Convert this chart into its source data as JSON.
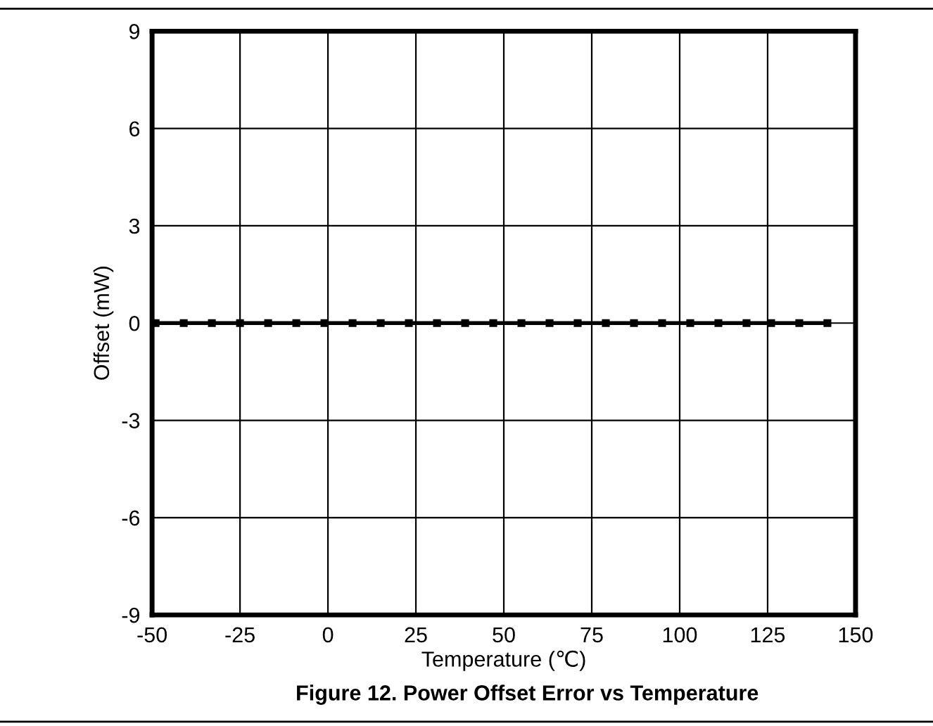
{
  "chart_data": {
    "type": "line",
    "title": "Figure 12. Power Offset Error vs Temperature",
    "xlabel": "Temperature (℃)",
    "ylabel": "Offset (mW)",
    "series": [
      {
        "color": "#000000",
        "x": [
          -49,
          -41,
          -33,
          -25,
          -17,
          -9,
          -1,
          7,
          15,
          23,
          31,
          39,
          47,
          55,
          63,
          71,
          79,
          87,
          95,
          103,
          111,
          119,
          126,
          134,
          142
        ],
        "values": [
          0,
          0,
          0,
          0,
          0,
          0,
          0,
          0,
          0,
          0,
          0,
          0,
          0,
          0,
          0,
          0,
          0,
          0,
          0,
          0,
          0,
          0,
          0,
          0,
          0
        ]
      }
    ],
    "xlim": [
      -50,
      150
    ],
    "xticks": [
      -50,
      -25,
      0,
      25,
      50,
      75,
      100,
      125,
      150
    ],
    "ylim": [
      -9,
      9
    ],
    "yticks": [
      -9,
      -6,
      -3,
      0,
      3,
      6,
      9
    ],
    "grid": true,
    "marker": "square",
    "line_style": "solid"
  }
}
